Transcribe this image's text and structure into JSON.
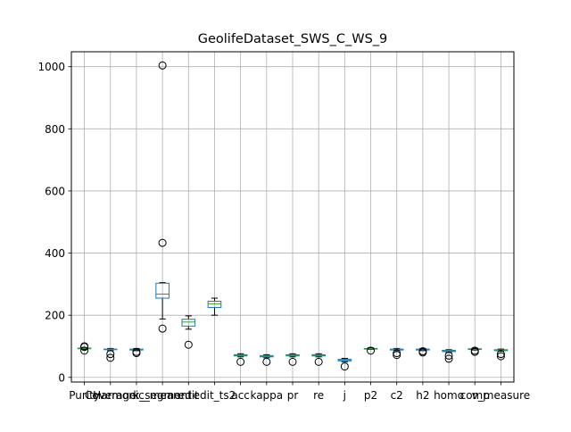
{
  "chart_data": {
    "type": "boxplot",
    "title": "GeolifeDataset_SWS_C_WS_9",
    "xlabel": "",
    "ylabel": "",
    "ylim": [
      -15,
      1048
    ],
    "yticks": [
      0,
      200,
      400,
      600,
      800,
      1000
    ],
    "grid": true,
    "categories": [
      "Purity",
      "Coverage",
      "Harmonic_mean",
      "k_segment",
      "edit",
      "edit_ts2",
      "acc",
      "kappa",
      "pr",
      "re",
      "j",
      "p2",
      "c2",
      "h2",
      "homo",
      "comp",
      "v_measure"
    ],
    "boxes": [
      {
        "name": "Purity",
        "whislo": 90,
        "q1": 92,
        "med": 93,
        "q3": 94,
        "whishi": 96,
        "fliers": [
          86,
          98,
          100
        ]
      },
      {
        "name": "Coverage",
        "whislo": 86,
        "q1": 89,
        "med": 90,
        "q3": 91,
        "whishi": 93,
        "fliers": [
          63,
          75
        ]
      },
      {
        "name": "Harmonic_mean",
        "whislo": 86,
        "q1": 88,
        "med": 90,
        "q3": 91,
        "whishi": 93,
        "fliers": [
          78,
          82
        ]
      },
      {
        "name": "k_segment",
        "whislo": 188,
        "q1": 255,
        "med": 268,
        "q3": 303,
        "whishi": 305,
        "fliers": [
          157,
          433,
          1004
        ]
      },
      {
        "name": "edit",
        "whislo": 155,
        "q1": 165,
        "med": 178,
        "q3": 187,
        "whishi": 198,
        "fliers": [
          105
        ]
      },
      {
        "name": "edit_ts2",
        "whislo": 200,
        "q1": 225,
        "med": 237,
        "q3": 245,
        "whishi": 255,
        "fliers": []
      },
      {
        "name": "acc",
        "whislo": 66,
        "q1": 69,
        "med": 71,
        "q3": 73,
        "whishi": 76,
        "fliers": [
          50
        ]
      },
      {
        "name": "kappa",
        "whislo": 63,
        "q1": 66,
        "med": 68,
        "q3": 70,
        "whishi": 73,
        "fliers": [
          50
        ]
      },
      {
        "name": "pr",
        "whislo": 66,
        "q1": 69,
        "med": 71,
        "q3": 73,
        "whishi": 76,
        "fliers": [
          50
        ]
      },
      {
        "name": "re",
        "whislo": 66,
        "q1": 69,
        "med": 71,
        "q3": 73,
        "whishi": 76,
        "fliers": [
          50
        ]
      },
      {
        "name": "j",
        "whislo": 50,
        "q1": 53,
        "med": 55,
        "q3": 58,
        "whishi": 61,
        "fliers": [
          35
        ]
      },
      {
        "name": "p2",
        "whislo": 90,
        "q1": 91,
        "med": 92,
        "q3": 93,
        "whishi": 95,
        "fliers": [
          86
        ]
      },
      {
        "name": "c2",
        "whislo": 86,
        "q1": 88,
        "med": 90,
        "q3": 91,
        "whishi": 93,
        "fliers": [
          72,
          78
        ]
      },
      {
        "name": "h2",
        "whislo": 86,
        "q1": 88,
        "med": 90,
        "q3": 91,
        "whishi": 93,
        "fliers": [
          80,
          84
        ]
      },
      {
        "name": "homo",
        "whislo": 80,
        "q1": 83,
        "med": 85,
        "q3": 87,
        "whishi": 89,
        "fliers": [
          60,
          70
        ]
      },
      {
        "name": "comp",
        "whislo": 88,
        "q1": 90,
        "med": 91,
        "q3": 92,
        "whishi": 94,
        "fliers": [
          82,
          86
        ]
      },
      {
        "name": "v_measure",
        "whislo": 84,
        "q1": 86,
        "med": 88,
        "q3": 89,
        "whishi": 91,
        "fliers": [
          68,
          75
        ]
      }
    ],
    "colors": {
      "box": "#1f77b4",
      "median": "#2ca02c",
      "whisker": "#000000",
      "flier": "#000000",
      "grid": "#b0b0b0"
    }
  }
}
